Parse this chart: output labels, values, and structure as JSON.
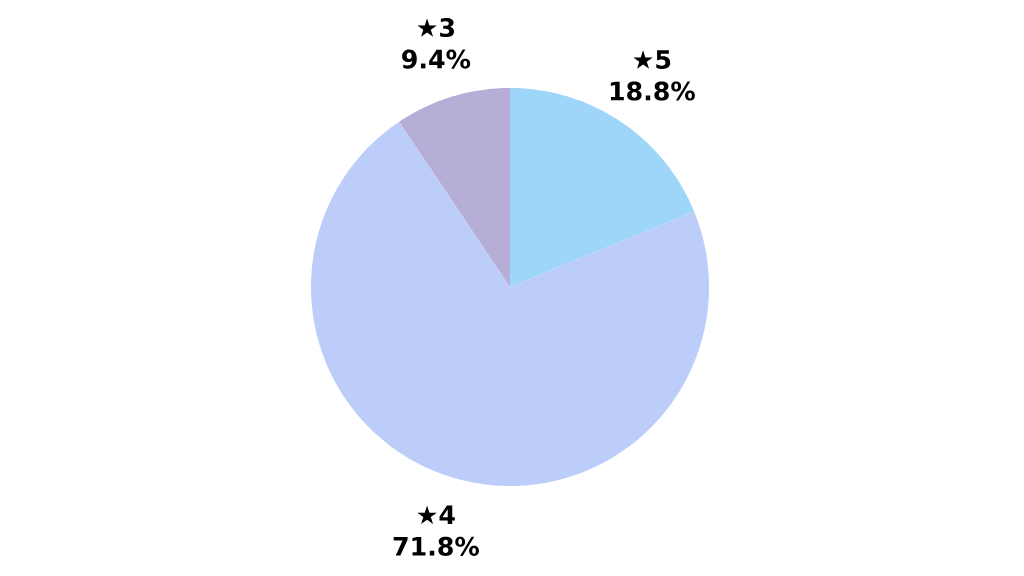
{
  "chart_data": {
    "type": "pie",
    "categories": [
      "★5",
      "★4",
      "★3"
    ],
    "values": [
      18.8,
      71.8,
      9.4
    ],
    "colors": [
      "#9dd6f9",
      "#bccdfa",
      "#b7aed8"
    ],
    "value_labels": [
      "18.8%",
      "71.8%",
      "9.4%"
    ]
  }
}
